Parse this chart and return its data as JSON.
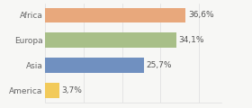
{
  "categories": [
    "America",
    "Asia",
    "Europa",
    "Africa"
  ],
  "values": [
    3.7,
    25.7,
    34.1,
    36.6
  ],
  "bar_colors": [
    "#f2ca5a",
    "#7090c0",
    "#a8bf88",
    "#e8a87c"
  ],
  "labels": [
    "3,7%",
    "25,7%",
    "34,1%",
    "36,6%"
  ],
  "xlim": [
    0,
    46
  ],
  "background_color": "#f7f7f5",
  "label_fontsize": 6.5,
  "tick_fontsize": 6.5,
  "bar_height": 0.6,
  "grid_color": "#dddddd",
  "label_color": "#555555",
  "tick_color": "#666666"
}
